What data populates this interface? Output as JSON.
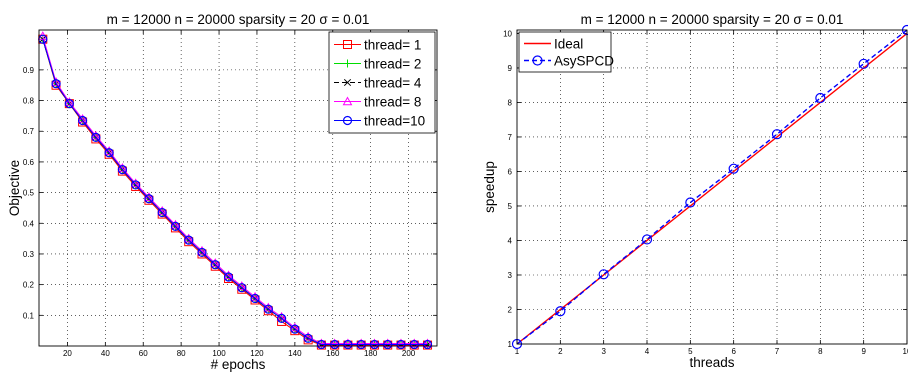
{
  "chart_data": [
    {
      "type": "line",
      "title": "m = 12000 n = 20000 sparsity = 20 σ = 0.01",
      "xlabel": "# epochs",
      "ylabel": "Objective",
      "xlim": [
        5,
        215
      ],
      "ylim": [
        0,
        1.03
      ],
      "xticks": [
        20,
        40,
        60,
        80,
        100,
        120,
        140,
        160,
        180,
        200
      ],
      "yticks": [
        0.1,
        0.2,
        0.3,
        0.4,
        0.5,
        0.6,
        0.7,
        0.8,
        0.9
      ],
      "grid": true,
      "legend_position": "top-right",
      "series": [
        {
          "name": "thread= 1",
          "color": "#ff0000",
          "marker": "square",
          "dash": "solid",
          "x": [
            7,
            14,
            21,
            28,
            35,
            42,
            49,
            56,
            63,
            70,
            77,
            84,
            91,
            98,
            105,
            112,
            119,
            126,
            133,
            140,
            147,
            154,
            161,
            168,
            175,
            182,
            189,
            196,
            203,
            210
          ],
          "y": [
            1.0,
            0.85,
            0.79,
            0.73,
            0.675,
            0.625,
            0.57,
            0.52,
            0.475,
            0.43,
            0.385,
            0.34,
            0.3,
            0.26,
            0.22,
            0.185,
            0.15,
            0.115,
            0.08,
            0.05,
            0.02,
            0.003,
            0.003,
            0.003,
            0.003,
            0.003,
            0.003,
            0.003,
            0.003,
            0.003
          ]
        },
        {
          "name": "thread= 2",
          "color": "#00dd00",
          "marker": "plus",
          "dash": "solid",
          "x": [
            7,
            14,
            21,
            28,
            35,
            42,
            49,
            56,
            63,
            70,
            77,
            84,
            91,
            98,
            105,
            112,
            119,
            126,
            133,
            140,
            147,
            154,
            161,
            168,
            175,
            182,
            189,
            196,
            203,
            210
          ],
          "y": [
            1.0,
            0.855,
            0.79,
            0.735,
            0.68,
            0.63,
            0.575,
            0.525,
            0.48,
            0.435,
            0.39,
            0.345,
            0.305,
            0.265,
            0.225,
            0.19,
            0.155,
            0.12,
            0.09,
            0.055,
            0.025,
            0.005,
            0.005,
            0.005,
            0.005,
            0.005,
            0.005,
            0.005,
            0.005,
            0.005
          ]
        },
        {
          "name": "thread= 4",
          "color": "#000000",
          "marker": "x",
          "dash": "dashed",
          "x": [
            7,
            14,
            21,
            28,
            35,
            42,
            49,
            56,
            63,
            70,
            77,
            84,
            91,
            98,
            105,
            112,
            119,
            126,
            133,
            140,
            147,
            154,
            161,
            168,
            175,
            182,
            189,
            196,
            203,
            210
          ],
          "y": [
            1.0,
            0.855,
            0.79,
            0.735,
            0.68,
            0.63,
            0.575,
            0.525,
            0.48,
            0.435,
            0.39,
            0.345,
            0.305,
            0.265,
            0.225,
            0.19,
            0.155,
            0.12,
            0.09,
            0.055,
            0.025,
            0.005,
            0.005,
            0.005,
            0.005,
            0.005,
            0.005,
            0.005,
            0.005,
            0.005
          ]
        },
        {
          "name": "thread= 8",
          "color": "#ff00ff",
          "marker": "triangle",
          "dash": "solid",
          "x": [
            7,
            14,
            21,
            28,
            35,
            42,
            49,
            56,
            63,
            70,
            77,
            84,
            91,
            98,
            105,
            112,
            119,
            126,
            133,
            140,
            147,
            154,
            161,
            168,
            175,
            182,
            189,
            196,
            203,
            210
          ],
          "y": [
            1.01,
            0.86,
            0.795,
            0.74,
            0.685,
            0.635,
            0.58,
            0.53,
            0.485,
            0.44,
            0.395,
            0.35,
            0.31,
            0.27,
            0.23,
            0.195,
            0.16,
            0.125,
            0.095,
            0.06,
            0.03,
            0.008,
            0.008,
            0.008,
            0.008,
            0.008,
            0.008,
            0.008,
            0.008,
            0.008
          ]
        },
        {
          "name": "thread=10",
          "color": "#0000ff",
          "marker": "circle",
          "dash": "solid",
          "x": [
            7,
            14,
            21,
            28,
            35,
            42,
            49,
            56,
            63,
            70,
            77,
            84,
            91,
            98,
            105,
            112,
            119,
            126,
            133,
            140,
            147,
            154,
            161,
            168,
            175,
            182,
            189,
            196,
            203,
            210
          ],
          "y": [
            1.0,
            0.855,
            0.79,
            0.735,
            0.68,
            0.63,
            0.575,
            0.525,
            0.48,
            0.435,
            0.39,
            0.345,
            0.305,
            0.265,
            0.225,
            0.19,
            0.155,
            0.12,
            0.09,
            0.055,
            0.025,
            0.005,
            0.005,
            0.005,
            0.005,
            0.005,
            0.005,
            0.005,
            0.005,
            0.005
          ]
        }
      ]
    },
    {
      "type": "line",
      "title": "m = 12000 n = 20000 sparsity = 20 σ = 0.01",
      "xlabel": "threads",
      "ylabel": "speedup",
      "xlim": [
        1,
        10
      ],
      "ylim": [
        1,
        10.1
      ],
      "xticks": [
        1,
        2,
        3,
        4,
        5,
        6,
        7,
        8,
        9,
        10
      ],
      "yticks": [
        1,
        2,
        3,
        4,
        5,
        6,
        7,
        8,
        9,
        10
      ],
      "grid": true,
      "legend_position": "top-left",
      "series": [
        {
          "name": "Ideal",
          "color": "#ff0000",
          "marker": "none",
          "dash": "solid",
          "x": [
            1,
            10
          ],
          "y": [
            1,
            10
          ]
        },
        {
          "name": "AsySPCD",
          "color": "#0000ff",
          "marker": "circle",
          "dash": "dashed",
          "x": [
            1,
            2,
            3,
            4,
            5,
            6,
            7,
            8,
            9,
            10
          ],
          "y": [
            1,
            1.95,
            3.02,
            4.03,
            5.1,
            6.08,
            7.08,
            8.13,
            9.12,
            10.1
          ]
        }
      ]
    }
  ]
}
